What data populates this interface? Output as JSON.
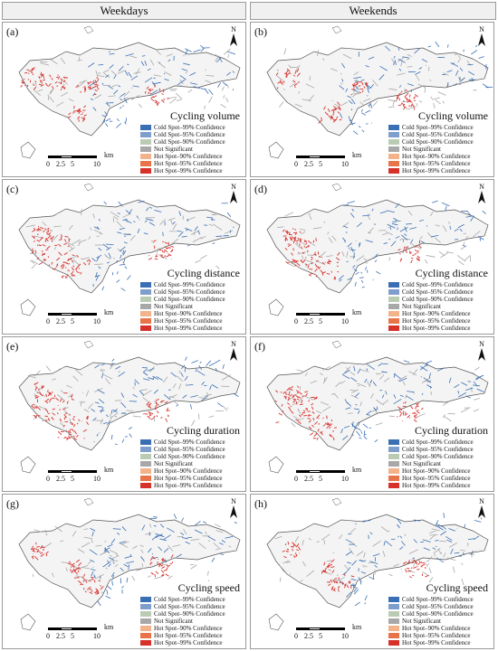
{
  "columns": [
    "Weekdays",
    "Weekends"
  ],
  "legend_items": [
    {
      "label": "Cold Spot–99% Confidence",
      "color": "#3a6fb4"
    },
    {
      "label": "Cold Spot–95% Confidence",
      "color": "#7f9ecb"
    },
    {
      "label": "Cold Spot–90% Confidence",
      "color": "#b9cbb3"
    },
    {
      "label": "Not Significant",
      "color": "#a8a8a8"
    },
    {
      "label": "Hot Spot–90% Confidence",
      "color": "#f2b28a"
    },
    {
      "label": "Hot Spot–95% Confidence",
      "color": "#e8754a"
    },
    {
      "label": "Hot Spot–99% Confidence",
      "color": "#d6312b"
    }
  ],
  "scale_bar": {
    "ticks": [
      "0",
      "2.5",
      "5",
      "10"
    ],
    "unit": "km"
  },
  "north_label": "N",
  "panels": [
    {
      "label": "(a)",
      "title": "Cycling volume",
      "column": "Weekdays"
    },
    {
      "label": "(b)",
      "title": "Cycling volume",
      "column": "Weekends"
    },
    {
      "label": "(c)",
      "title": "Cycling distance",
      "column": "Weekdays"
    },
    {
      "label": "(d)",
      "title": "Cycling distance",
      "column": "Weekends"
    },
    {
      "label": "(e)",
      "title": "Cycling duration",
      "column": "Weekdays"
    },
    {
      "label": "(f)",
      "title": "Cycling duration",
      "column": "Weekends"
    },
    {
      "label": "(g)",
      "title": "Cycling speed",
      "column": "Weekdays"
    },
    {
      "label": "(h)",
      "title": "Cycling speed",
      "column": "Weekends"
    }
  ]
}
